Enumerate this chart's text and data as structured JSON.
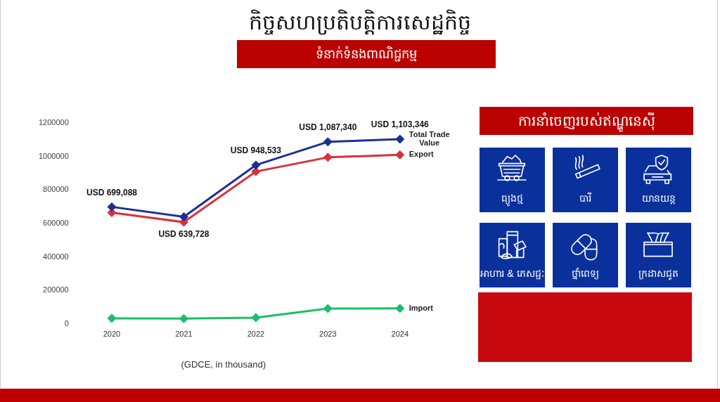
{
  "chart_data": [
    {
      "type": "line",
      "title": "កិច្ចសហប្រតិបត្តិការសេដ្ឋកិច្ច",
      "subtitle": "ទំនាក់ទំនងពាណិជ្ជកម្ម",
      "categories": [
        "2020",
        "2021",
        "2022",
        "2023",
        "2024"
      ],
      "series": [
        {
          "name": "Total Trade Value",
          "color": "#1a2f98",
          "values": [
            699088,
            639728,
            948533,
            1087340,
            1103346
          ],
          "value_labels": [
            "USD 699,088",
            "USD 639,728",
            "USD 948,533",
            "USD 1,087,340",
            "USD 1,103,346"
          ]
        },
        {
          "name": "Export",
          "color": "#d8313c",
          "values": [
            665000,
            608000,
            910000,
            995000,
            1010000
          ]
        },
        {
          "name": "Import",
          "color": "#19bf69",
          "values": [
            34000,
            32000,
            38000,
            92000,
            93000
          ]
        }
      ],
      "ylim": [
        0,
        1200000
      ],
      "yticks": [
        0,
        200000,
        400000,
        600000,
        800000,
        1000000,
        1200000
      ],
      "marker": "diamond",
      "annotations": [
        "(GDCE, in thousand)"
      ]
    },
    {
      "type": "other",
      "title": "ការនាំចេញរបស់ឥណ្ឌូនេស៊ី",
      "annotations": [
        "ធ្យូងថ្ម",
        "បារី",
        "យានយន្ត",
        "អាហារ & ភេសជ្ជៈ",
        "ថ្នាំពេទ្យ",
        "ក្រដាសជូត"
      ]
    }
  ]
}
